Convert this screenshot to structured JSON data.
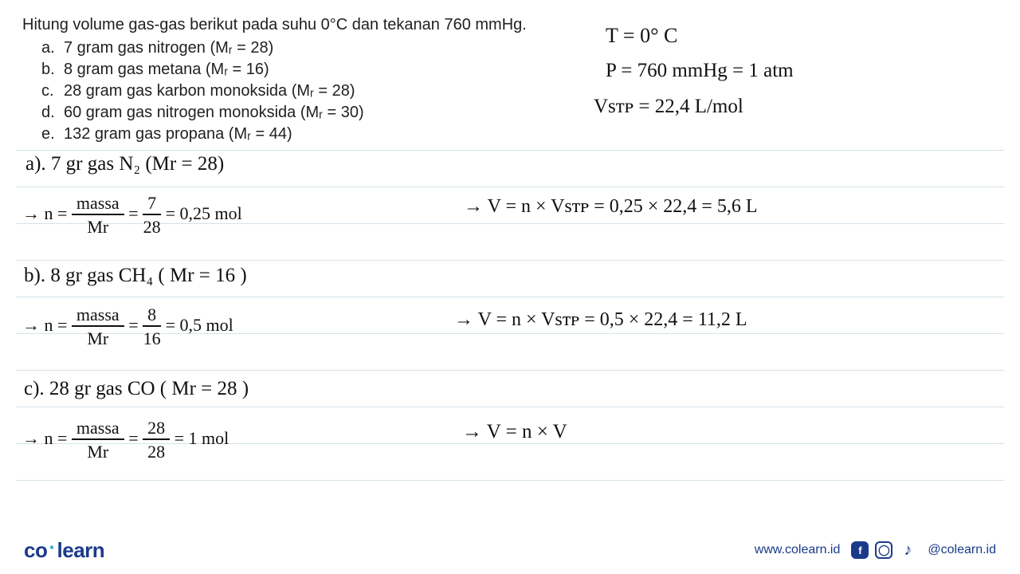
{
  "question": {
    "intro": "Hitung volume gas-gas berikut pada suhu 0°C dan tekanan 760 mmHg.",
    "items": [
      {
        "label": "a.",
        "text": "7 gram gas nitrogen (Mᵣ = 28)"
      },
      {
        "label": "b.",
        "text": "8 gram gas metana (Mᵣ = 16)"
      },
      {
        "label": "c.",
        "text": "28 gram gas karbon monoksida (Mᵣ = 28)"
      },
      {
        "label": "d.",
        "text": "60 gram gas nitrogen monoksida (Mᵣ = 30)"
      },
      {
        "label": "e.",
        "text": "132 gram gas propana (Mᵣ = 44)"
      }
    ]
  },
  "given": {
    "line1": "T = 0° C",
    "line2": "P = 760 mmHg = 1 atm",
    "line3": "V꜀ₛₜₚ = 22,4 L/mol",
    "l1": "T  =  0° C",
    "l2": "P   =  760 mmHg  =  1 atm",
    "l3": "Vsᴛᴘ = 22,4  L/mol"
  },
  "work": {
    "a": {
      "title": "a). 7 gr gas N₂ (Mr = 28)",
      "n_lead": "→  n =",
      "n_num": "massa",
      "n_den": "Mr",
      "eq": "=",
      "v_num": "7",
      "v_den": "28",
      "n_res": "= 0,25  mol",
      "v_line": "→  V = n × Vsᴛᴘ = 0,25 × 22,4  = 5,6  L"
    },
    "b": {
      "title": "b). 8 gr gas CH₄ ( Mr = 16 )",
      "n_lead": "→  n  =",
      "n_num": "massa",
      "n_den": "Mr",
      "eq": "=",
      "v_num": "8",
      "v_den": "16",
      "n_res": "= 0,5  mol",
      "v_line": "→  V = n × Vsᴛᴘ =  0,5 × 22,4  =  11,2  L"
    },
    "c": {
      "title": "c). 28 gr gas CO ( Mr = 28 )",
      "n_lead": "→  n =",
      "n_num": "massa",
      "n_den": "Mr",
      "eq": "=",
      "v_num": "28",
      "v_den": "28",
      "n_res": "=  1  mol",
      "v_line": "→  V = n × V"
    }
  },
  "footer": {
    "brand_a": "co",
    "brand_b": "learn",
    "url": "www.colearn.id",
    "handle": "@colearn.id"
  },
  "style": {
    "rule_color": "#d5e3ea",
    "rule_tops": [
      188,
      234,
      280,
      326,
      372,
      418,
      464,
      510,
      556,
      602
    ],
    "print_font_size": 20,
    "hand_font_size": 22,
    "hand_color": "#111111",
    "brand_color": "#1b3a8a",
    "accent_color": "#2aa8e0"
  }
}
